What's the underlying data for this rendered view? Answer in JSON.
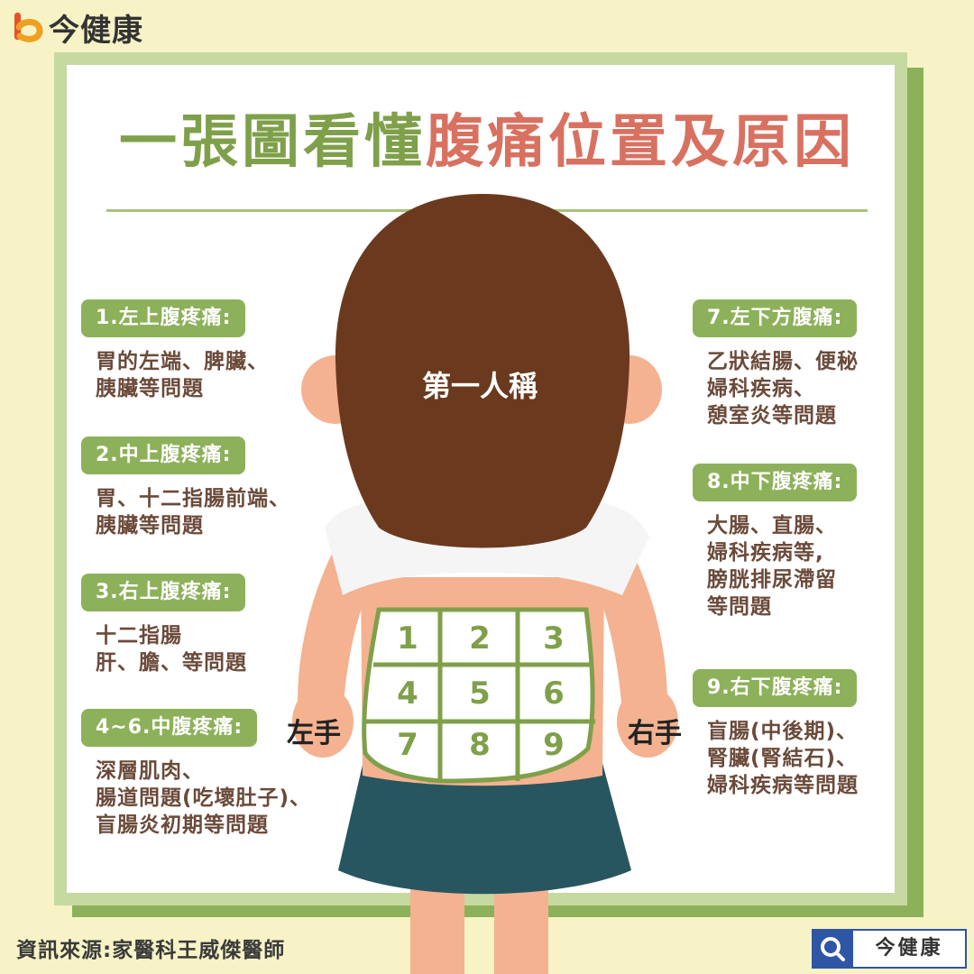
{
  "brand": {
    "name": "今健康"
  },
  "title": {
    "part_green": "一張圖看懂",
    "part_red": "腹痛位置及原因"
  },
  "figure": {
    "label": "第一人稱",
    "left_hand": "左手",
    "right_hand": "右手"
  },
  "grid": {
    "cells": [
      "1",
      "2",
      "3",
      "4",
      "5",
      "6",
      "7",
      "8",
      "9"
    ]
  },
  "left_column": [
    {
      "title": "1.左上腹疼痛:",
      "lines": [
        "胃的左端、脾臟、",
        "胰臟等問題"
      ]
    },
    {
      "title": "2.中上腹疼痛:",
      "lines": [
        "胃、十二指腸前端、",
        "胰臟等問題"
      ]
    },
    {
      "title": "3.右上腹疼痛:",
      "lines": [
        "十二指腸",
        "肝、膽、等問題"
      ]
    },
    {
      "title": "4~6.中腹疼痛:",
      "lines": [
        "深層肌肉、",
        "腸道問題(吃壞肚子)、",
        "盲腸炎初期等問題"
      ]
    }
  ],
  "right_column": [
    {
      "title": "7.左下方腹痛:",
      "lines": [
        "乙狀結腸、便秘",
        "婦科疾病、",
        "憩室炎等問題"
      ]
    },
    {
      "title": "8.中下腹疼痛:",
      "lines": [
        "大腸、直腸、",
        "婦科疾病等,",
        "膀胱排尿滯留",
        "等問題"
      ]
    },
    {
      "title": "9.右下腹疼痛:",
      "lines": [
        "盲腸(中後期)、",
        "腎臟(腎結石)、",
        "婦科疾病等問題"
      ]
    }
  ],
  "footer": {
    "source": "資訊來源:家醫科王威傑醫師",
    "search_label": "今健康"
  },
  "colors": {
    "green": "#8db15a",
    "red": "#d87160",
    "hair": "#6b3a1e",
    "skin": "#f4b290",
    "skirt": "#285660",
    "text": "#6b4a3a"
  }
}
